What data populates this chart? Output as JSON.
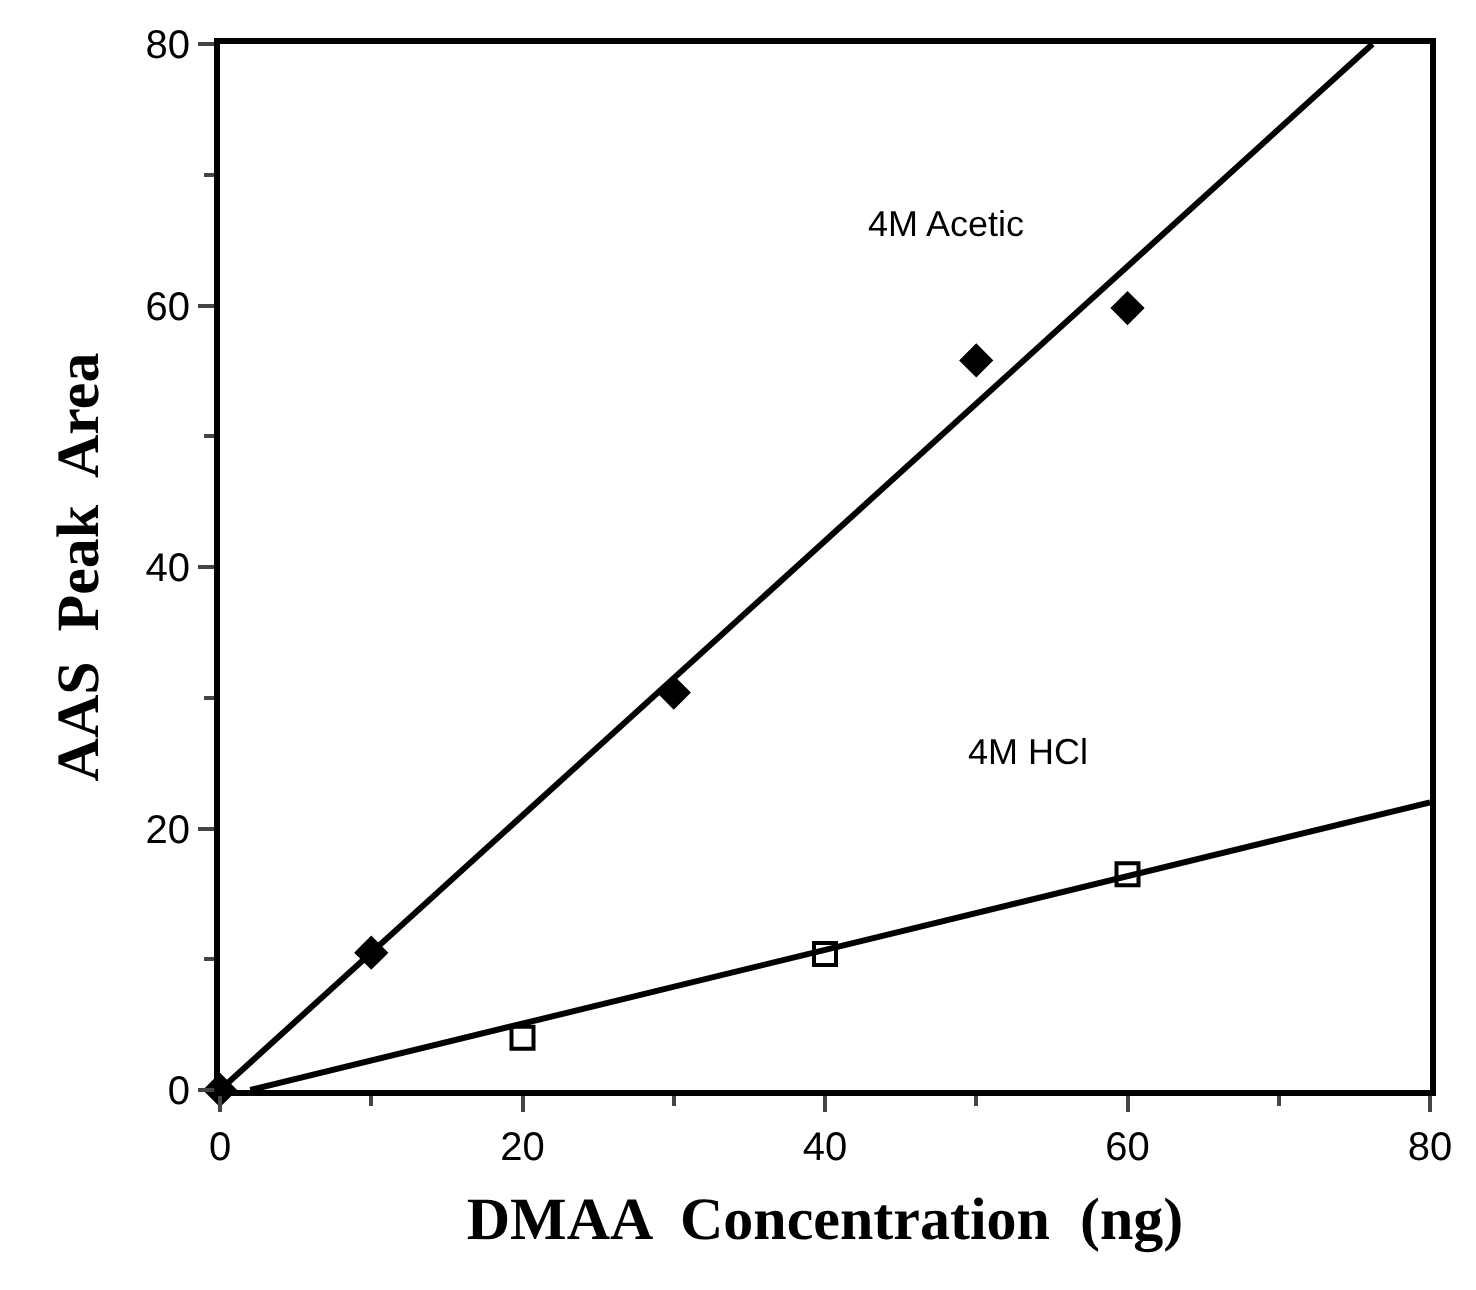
{
  "chart_data": {
    "type": "scatter",
    "xlabel": "DMAA  Concentration  (ng)",
    "ylabel": "AAS  Peak  Area",
    "xlim": [
      0,
      80
    ],
    "ylim": [
      0,
      80
    ],
    "xticks": [
      0,
      20,
      40,
      60,
      80
    ],
    "yticks": [
      0,
      20,
      40,
      60,
      80
    ],
    "series": [
      {
        "marker": "diamond",
        "color": "#000000",
        "x": [
          0,
          10,
          30,
          50,
          60
        ],
        "values": [
          0,
          10.5,
          30.4,
          55.8,
          59.8
        ]
      },
      {
        "marker": "square",
        "color": "#000000",
        "x": [
          20,
          40,
          60
        ],
        "values": [
          4.0,
          10.4,
          16.5
        ]
      },
      {
        "type": "line",
        "line_style": "solid",
        "color": "#000000",
        "x": [
          0,
          76.2
        ],
        "values": [
          0,
          80
        ]
      },
      {
        "type": "line",
        "line_style": "solid",
        "color": "#000000",
        "x": [
          2,
          80
        ],
        "values": [
          0,
          22
        ]
      }
    ],
    "annotations": [
      "4M Acetic",
      "4M HCl"
    ]
  }
}
